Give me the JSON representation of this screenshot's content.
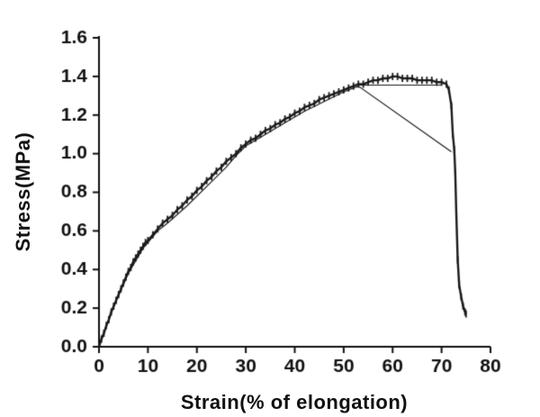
{
  "page": {
    "background": "#ffffff"
  },
  "decor": {
    "corner_artifact_color": "#9a9a9a"
  },
  "chart_data": {
    "type": "line",
    "title": "",
    "xlabel": "Strain(% of elongation)",
    "ylabel": "Stress(MPa)",
    "xlim": [
      0,
      80
    ],
    "ylim": [
      0,
      1.6
    ],
    "xticks": [
      0,
      10,
      20,
      30,
      40,
      50,
      60,
      70,
      80
    ],
    "xtick_labels": [
      "0",
      "10",
      "20",
      "30",
      "40",
      "50",
      "60",
      "70",
      "80"
    ],
    "yticks": [
      0,
      0.2,
      0.4,
      0.6,
      0.8,
      1.0,
      1.2,
      1.4,
      1.6
    ],
    "ytick_labels": [
      "0.0",
      "0.2",
      "0.4",
      "0.6",
      "0.8",
      "1.0",
      "1.2",
      "1.4",
      "1.6"
    ],
    "grid": false,
    "legend": "none",
    "axis_color": "#111111",
    "line_color": "#1a1a1a",
    "series": [
      {
        "name": "stress-strain-curve",
        "style": "thick-marked",
        "points": [
          [
            0,
            0.0
          ],
          [
            0.5,
            0.04
          ],
          [
            1,
            0.07
          ],
          [
            1.5,
            0.11
          ],
          [
            2,
            0.14
          ],
          [
            2.5,
            0.18
          ],
          [
            3,
            0.21
          ],
          [
            3.5,
            0.24
          ],
          [
            4,
            0.27
          ],
          [
            4.5,
            0.3
          ],
          [
            5,
            0.33
          ],
          [
            5.5,
            0.36
          ],
          [
            6,
            0.39
          ],
          [
            6.5,
            0.41
          ],
          [
            7,
            0.44
          ],
          [
            7.5,
            0.46
          ],
          [
            8,
            0.48
          ],
          [
            8.5,
            0.5
          ],
          [
            9,
            0.52
          ],
          [
            9.5,
            0.54
          ],
          [
            10,
            0.55
          ],
          [
            11,
            0.58
          ],
          [
            12,
            0.61
          ],
          [
            13,
            0.64
          ],
          [
            14,
            0.66
          ],
          [
            15,
            0.68
          ],
          [
            16,
            0.71
          ],
          [
            17,
            0.73
          ],
          [
            18,
            0.76
          ],
          [
            19,
            0.78
          ],
          [
            20,
            0.81
          ],
          [
            21,
            0.83
          ],
          [
            22,
            0.86
          ],
          [
            23,
            0.88
          ],
          [
            24,
            0.91
          ],
          [
            25,
            0.93
          ],
          [
            26,
            0.96
          ],
          [
            27,
            0.98
          ],
          [
            28,
            1.0
          ],
          [
            29,
            1.03
          ],
          [
            30,
            1.05
          ],
          [
            31,
            1.07
          ],
          [
            32,
            1.08
          ],
          [
            33,
            1.1
          ],
          [
            34,
            1.12
          ],
          [
            35,
            1.13
          ],
          [
            36,
            1.15
          ],
          [
            37,
            1.16
          ],
          [
            38,
            1.18
          ],
          [
            39,
            1.19
          ],
          [
            40,
            1.21
          ],
          [
            41,
            1.22
          ],
          [
            42,
            1.24
          ],
          [
            43,
            1.25
          ],
          [
            44,
            1.26
          ],
          [
            45,
            1.28
          ],
          [
            46,
            1.29
          ],
          [
            47,
            1.3
          ],
          [
            48,
            1.31
          ],
          [
            49,
            1.32
          ],
          [
            50,
            1.33
          ],
          [
            51,
            1.34
          ],
          [
            52,
            1.35
          ],
          [
            53,
            1.36
          ],
          [
            54,
            1.36
          ],
          [
            55,
            1.37
          ],
          [
            56,
            1.38
          ],
          [
            57,
            1.38
          ],
          [
            58,
            1.39
          ],
          [
            59,
            1.39
          ],
          [
            60,
            1.4
          ],
          [
            61,
            1.4
          ],
          [
            62,
            1.39
          ],
          [
            63,
            1.39
          ],
          [
            64,
            1.39
          ],
          [
            65,
            1.38
          ],
          [
            66,
            1.38
          ],
          [
            67,
            1.38
          ],
          [
            68,
            1.38
          ],
          [
            69,
            1.37
          ],
          [
            70,
            1.37
          ],
          [
            71,
            1.36
          ],
          [
            71.5,
            1.33
          ],
          [
            72,
            1.25
          ],
          [
            72.3,
            1.1
          ],
          [
            72.6,
            1.02
          ],
          [
            72.8,
            0.9
          ],
          [
            73,
            0.7
          ],
          [
            73.3,
            0.45
          ],
          [
            73.6,
            0.32
          ],
          [
            74,
            0.26
          ],
          [
            74.4,
            0.21
          ],
          [
            74.8,
            0.18
          ],
          [
            75,
            0.17
          ]
        ]
      },
      {
        "name": "overlay-fit-line",
        "style": "thin",
        "points": [
          [
            0,
            0.0
          ],
          [
            3,
            0.21
          ],
          [
            6,
            0.38
          ],
          [
            9,
            0.51
          ],
          [
            12,
            0.6
          ],
          [
            14,
            0.64
          ],
          [
            18,
            0.73
          ],
          [
            22,
            0.83
          ],
          [
            26,
            0.93
          ],
          [
            28,
            0.99
          ],
          [
            30,
            1.04
          ],
          [
            34,
            1.1
          ],
          [
            38,
            1.16
          ],
          [
            42,
            1.22
          ],
          [
            46,
            1.27
          ],
          [
            50,
            1.32
          ],
          [
            53,
            1.35
          ],
          [
            72,
            1.01
          ]
        ]
      },
      {
        "name": "plateau-line",
        "style": "thin",
        "points": [
          [
            53,
            1.355
          ],
          [
            70,
            1.355
          ]
        ]
      }
    ]
  }
}
